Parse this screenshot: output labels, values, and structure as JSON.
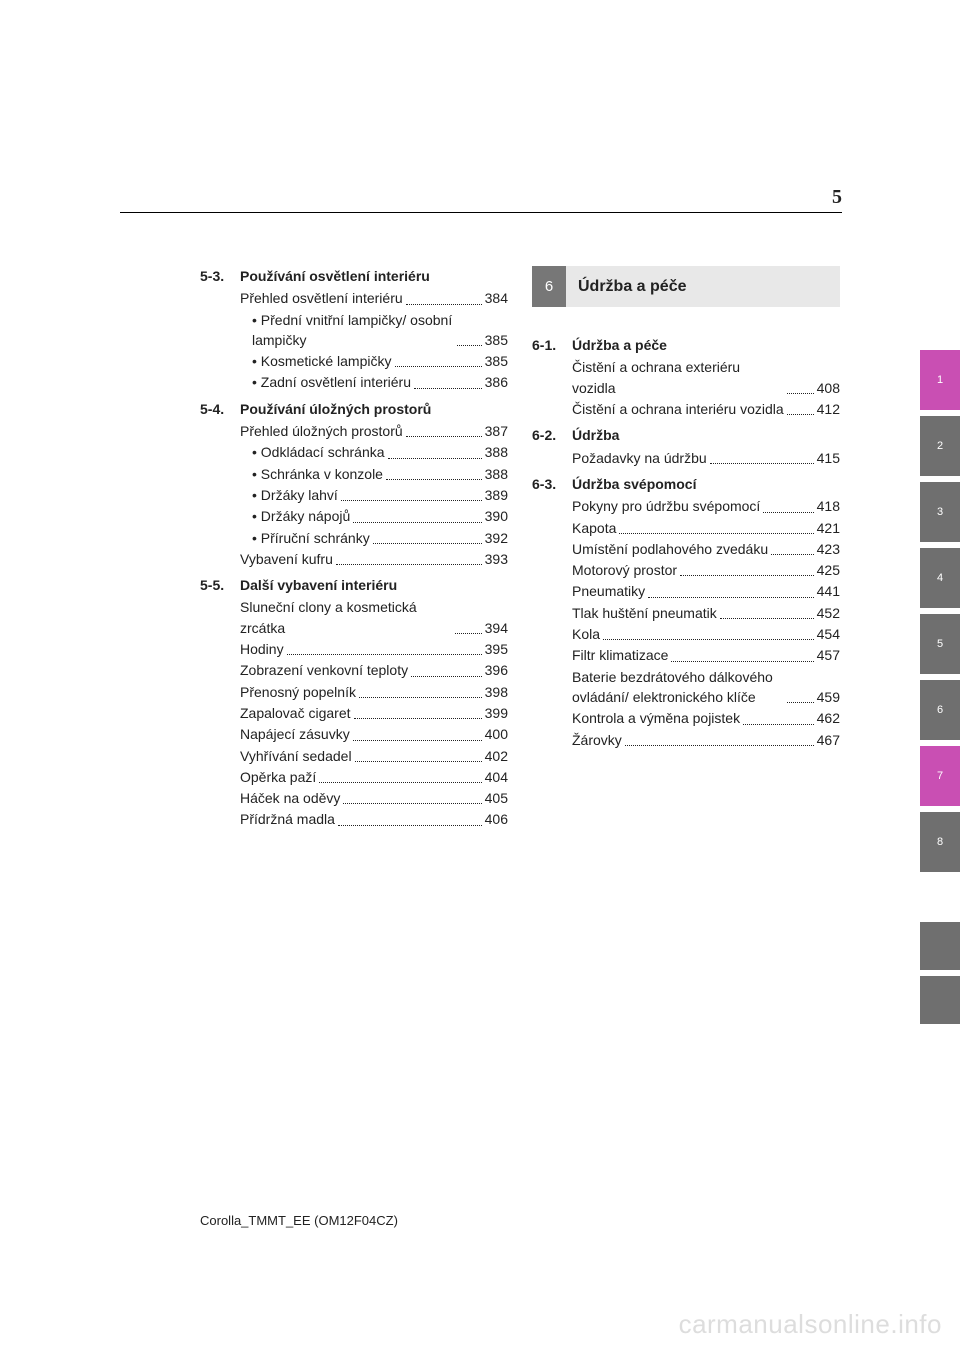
{
  "page_number": "5",
  "left_sections": [
    {
      "num": "5-3.",
      "title": "Používání osvětlení interiéru",
      "entries": [
        {
          "label": "Přehled osvětlení interiéru",
          "page": "384",
          "sub": false
        },
        {
          "label": "• Přední vnitřní lampičky/ osobní lampičky",
          "page": "385",
          "sub": true
        },
        {
          "label": "• Kosmetické lampičky",
          "page": "385",
          "sub": true
        },
        {
          "label": "• Zadní osvětlení interiéru",
          "page": "386",
          "sub": true
        }
      ]
    },
    {
      "num": "5-4.",
      "title": "Používání úložných prostorů",
      "entries": [
        {
          "label": "Přehled úložných prostorů",
          "page": "387",
          "sub": false
        },
        {
          "label": "• Odkládací schránka",
          "page": "388",
          "sub": true
        },
        {
          "label": "• Schránka v konzole",
          "page": "388",
          "sub": true
        },
        {
          "label": "• Držáky lahví",
          "page": "389",
          "sub": true
        },
        {
          "label": "• Držáky nápojů",
          "page": "390",
          "sub": true
        },
        {
          "label": "• Příruční schránky",
          "page": "392",
          "sub": true
        },
        {
          "label": "Vybavení kufru",
          "page": "393",
          "sub": false
        }
      ]
    },
    {
      "num": "5-5.",
      "title": "Další vybavení interiéru",
      "entries": [
        {
          "label": "Sluneční clony a kosmetická zrcátka",
          "page": "394",
          "sub": false
        },
        {
          "label": "Hodiny",
          "page": "395",
          "sub": false
        },
        {
          "label": "Zobrazení venkovní teploty",
          "page": "396",
          "sub": false
        },
        {
          "label": "Přenosný popelník",
          "page": "398",
          "sub": false
        },
        {
          "label": "Zapalovač cigaret",
          "page": "399",
          "sub": false
        },
        {
          "label": "Napájecí zásuvky",
          "page": "400",
          "sub": false
        },
        {
          "label": "Vyhřívání sedadel",
          "page": "402",
          "sub": false
        },
        {
          "label": "Opěrka paží",
          "page": "404",
          "sub": false
        },
        {
          "label": "Háček na oděvy",
          "page": "405",
          "sub": false
        },
        {
          "label": "Přídržná madla",
          "page": "406",
          "sub": false
        }
      ]
    }
  ],
  "chapter": {
    "num": "6",
    "title": "Údržba a péče"
  },
  "right_sections": [
    {
      "num": "6-1.",
      "title": "Údržba a péče",
      "entries": [
        {
          "label": "Čistění a ochrana exteriéru vozidla",
          "page": "408",
          "sub": false
        },
        {
          "label": "Čistění a ochrana interiéru vozidla",
          "page": "412",
          "sub": false
        }
      ]
    },
    {
      "num": "6-2.",
      "title": "Údržba",
      "entries": [
        {
          "label": "Požadavky na údržbu",
          "page": "415",
          "sub": false
        }
      ]
    },
    {
      "num": "6-3.",
      "title": "Údržba svépomocí",
      "entries": [
        {
          "label": "Pokyny pro údržbu svépomocí",
          "page": "418",
          "sub": false
        },
        {
          "label": "Kapota",
          "page": "421",
          "sub": false
        },
        {
          "label": "Umístění podlahového zvedáku",
          "page": "423",
          "sub": false
        },
        {
          "label": "Motorový prostor",
          "page": "425",
          "sub": false
        },
        {
          "label": "Pneumatiky",
          "page": "441",
          "sub": false
        },
        {
          "label": "Tlak huštění pneumatik",
          "page": "452",
          "sub": false
        },
        {
          "label": "Kola",
          "page": "454",
          "sub": false
        },
        {
          "label": "Filtr klimatizace",
          "page": "457",
          "sub": false
        },
        {
          "label": "Baterie bezdrátového dálkového ovládání/ elektronického klíče",
          "page": "459",
          "sub": false
        },
        {
          "label": "Kontrola a výměna pojistek",
          "page": "462",
          "sub": false
        },
        {
          "label": "Žárovky",
          "page": "467",
          "sub": false
        }
      ]
    }
  ],
  "tabs": [
    {
      "label": "1",
      "color": "#c94fb3"
    },
    {
      "label": "2",
      "color": "#6f6f6f"
    },
    {
      "label": "3",
      "color": "#6f6f6f"
    },
    {
      "label": "4",
      "color": "#6f6f6f"
    },
    {
      "label": "5",
      "color": "#6f6f6f"
    },
    {
      "label": "6",
      "color": "#6f6f6f"
    },
    {
      "label": "7",
      "color": "#c94fb3"
    },
    {
      "label": "8",
      "color": "#6f6f6f"
    }
  ],
  "footer": "Corolla_TMMT_EE (OM12F04CZ)",
  "watermark": "carmanualsonline.info"
}
